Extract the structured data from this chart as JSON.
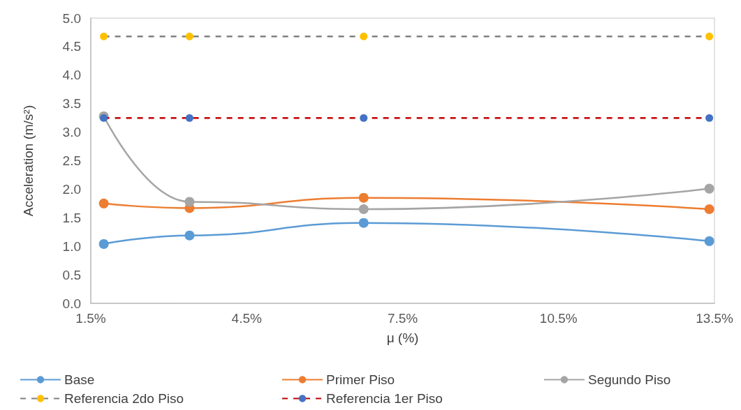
{
  "chart_data": {
    "type": "line",
    "xlabel": "μ (%)",
    "ylabel": "Acceleration (m/s²)",
    "x": [
      1.75,
      3.4,
      6.75,
      13.4
    ],
    "xlim": [
      1.5,
      13.5
    ],
    "xticks": [
      {
        "value": 1.5,
        "label": "1.5%"
      },
      {
        "value": 4.5,
        "label": "4.5%"
      },
      {
        "value": 7.5,
        "label": "7.5%"
      },
      {
        "value": 10.5,
        "label": "10.5%"
      },
      {
        "value": 13.5,
        "label": "13.5%"
      }
    ],
    "ylim": [
      0,
      5
    ],
    "yticks": [
      {
        "value": 0,
        "label": "0.0"
      },
      {
        "value": 0.5,
        "label": "0.5"
      },
      {
        "value": 1,
        "label": "1.0"
      },
      {
        "value": 1.5,
        "label": "1.5"
      },
      {
        "value": 2,
        "label": "2.0"
      },
      {
        "value": 2.5,
        "label": "2.5"
      },
      {
        "value": 3,
        "label": "3.0"
      },
      {
        "value": 3.5,
        "label": "3.5"
      },
      {
        "value": 4,
        "label": "4.0"
      },
      {
        "value": 4.5,
        "label": "4.5"
      },
      {
        "value": 5,
        "label": "5.0"
      }
    ],
    "grid": false,
    "legend": "bottom",
    "marker": "circle",
    "series": [
      {
        "name": "Base",
        "color": "#5b9bd5",
        "values": [
          1.04,
          1.19,
          1.41,
          1.09
        ],
        "line_style": "solid"
      },
      {
        "name": "Primer Piso",
        "color": "#ed7d31",
        "values": [
          1.75,
          1.67,
          1.85,
          1.65
        ],
        "line_style": "solid"
      },
      {
        "name": "Segundo Piso",
        "color": "#a5a5a5",
        "values": [
          3.28,
          1.78,
          1.65,
          2.01
        ],
        "line_style": "solid"
      },
      {
        "name": "Referencia 2do Piso",
        "color": "#808080",
        "colors": [
          "#ffc000",
          "#ffc000",
          "#ffc000",
          "#ffc000"
        ],
        "values": [
          4.68,
          4.68,
          4.68,
          4.68
        ],
        "line_style": "dashed"
      },
      {
        "name": "Referencia 1er Piso",
        "color": "#c00000",
        "colors": [
          "#4472c4",
          "#4472c4",
          "#4472c4",
          "#4472c4"
        ],
        "values": [
          3.25,
          3.25,
          3.25,
          3.25
        ],
        "line_style": "dashed"
      }
    ]
  }
}
